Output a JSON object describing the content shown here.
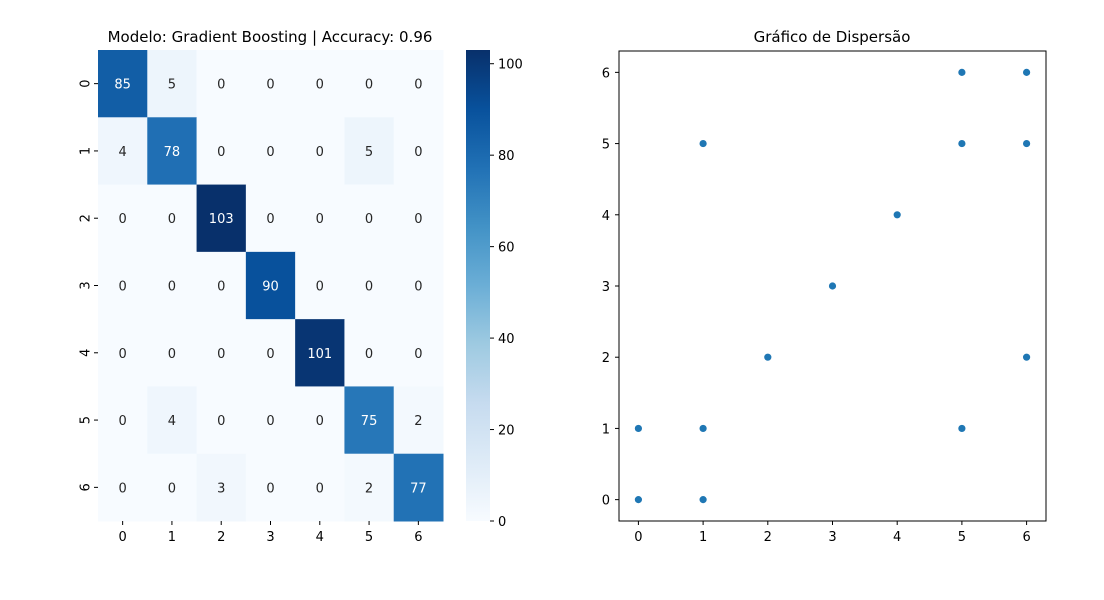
{
  "chart_data": [
    {
      "type": "heatmap",
      "title": "Modelo: Gradient Boosting | Accuracy: 0.96",
      "x_ticks": [
        "0",
        "1",
        "2",
        "3",
        "4",
        "5",
        "6"
      ],
      "y_ticks": [
        "0",
        "1",
        "2",
        "3",
        "4",
        "5",
        "6"
      ],
      "matrix": [
        [
          85,
          5,
          0,
          0,
          0,
          0,
          0
        ],
        [
          4,
          78,
          0,
          0,
          0,
          5,
          0
        ],
        [
          0,
          0,
          103,
          0,
          0,
          0,
          0
        ],
        [
          0,
          0,
          0,
          90,
          0,
          0,
          0
        ],
        [
          0,
          0,
          0,
          0,
          101,
          0,
          0
        ],
        [
          0,
          4,
          0,
          0,
          0,
          75,
          2
        ],
        [
          0,
          0,
          3,
          0,
          0,
          2,
          77
        ]
      ],
      "colormap": "Blues",
      "colorbar": {
        "min": 0,
        "max": 103,
        "ticks": [
          0,
          20,
          40,
          60,
          80,
          100
        ]
      }
    },
    {
      "type": "scatter",
      "title": "Gráfico de Dispersão",
      "points": [
        {
          "x": 0,
          "y": 0
        },
        {
          "x": 0,
          "y": 1
        },
        {
          "x": 1,
          "y": 0
        },
        {
          "x": 1,
          "y": 1
        },
        {
          "x": 1,
          "y": 5
        },
        {
          "x": 2,
          "y": 2
        },
        {
          "x": 3,
          "y": 3
        },
        {
          "x": 4,
          "y": 4
        },
        {
          "x": 5,
          "y": 1
        },
        {
          "x": 5,
          "y": 5
        },
        {
          "x": 5,
          "y": 6
        },
        {
          "x": 6,
          "y": 2
        },
        {
          "x": 6,
          "y": 5
        },
        {
          "x": 6,
          "y": 6
        }
      ],
      "x_ticks": [
        0,
        1,
        2,
        3,
        4,
        5,
        6
      ],
      "y_ticks": [
        0,
        1,
        2,
        3,
        4,
        5,
        6
      ],
      "xlim": [
        -0.3,
        6.3
      ],
      "ylim": [
        -0.3,
        6.3
      ],
      "point_color": "#1f77b4",
      "grid": false
    }
  ]
}
